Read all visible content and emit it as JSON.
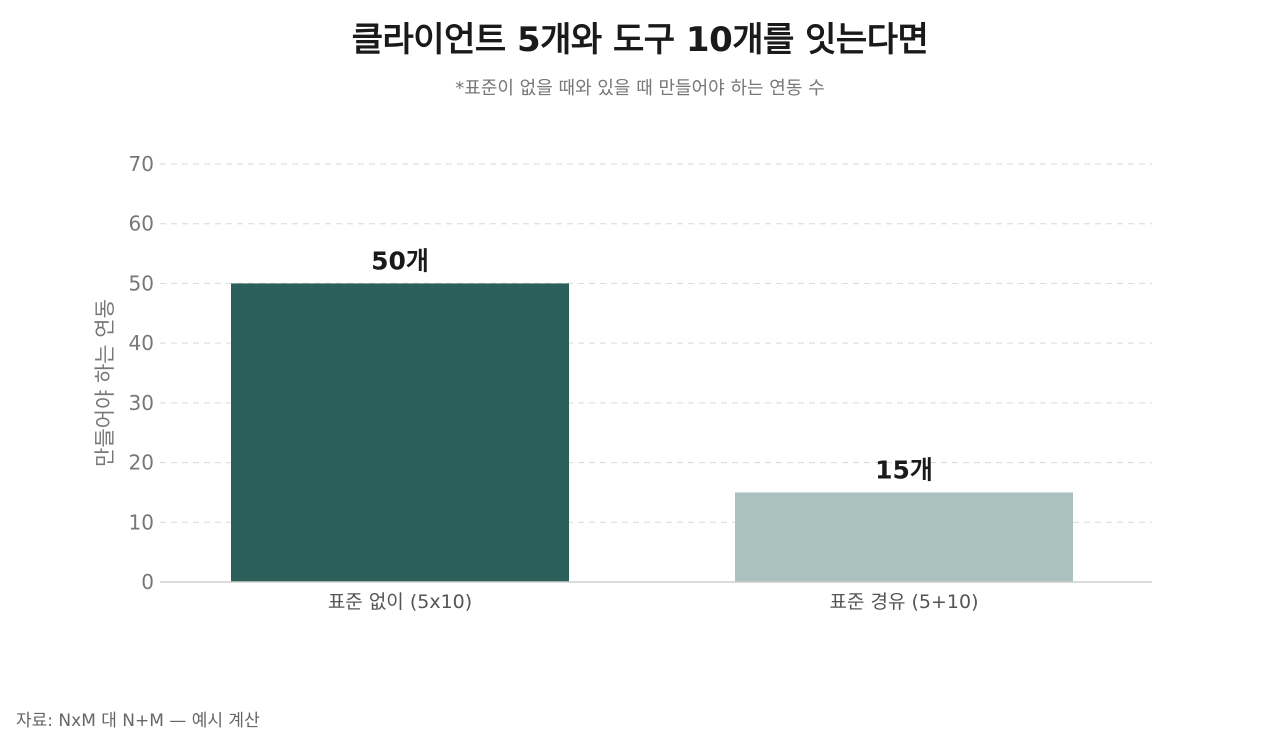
{
  "title": "클라이언트 5개와 도구 10개를 잇는다면",
  "subtitle": "*표준이 없을 때와 있을 때 만들어야 하는 연동 수",
  "source": "자료: NxM 대 N+M — 예시 계산",
  "colors": {
    "bar_no_standard": "#2b5f5a",
    "bar_standard": "#abc1bd",
    "grid": "#d9d9d9",
    "axis_text": "#777777",
    "label_text": "#1a1a1a"
  },
  "chart_data": {
    "type": "bar",
    "categories": [
      "표준 없이 (5x10)",
      "표준 경유 (5+10)"
    ],
    "values": [
      50,
      15
    ],
    "data_labels": [
      "50개",
      "15개"
    ],
    "ylabel": "만들어야 하는 연동",
    "xlabel": "",
    "ylim": [
      0,
      70
    ],
    "yticks": [
      0,
      10,
      20,
      30,
      40,
      50,
      60,
      70
    ],
    "grid": true,
    "grid_style": "dashed",
    "legend": false
  }
}
